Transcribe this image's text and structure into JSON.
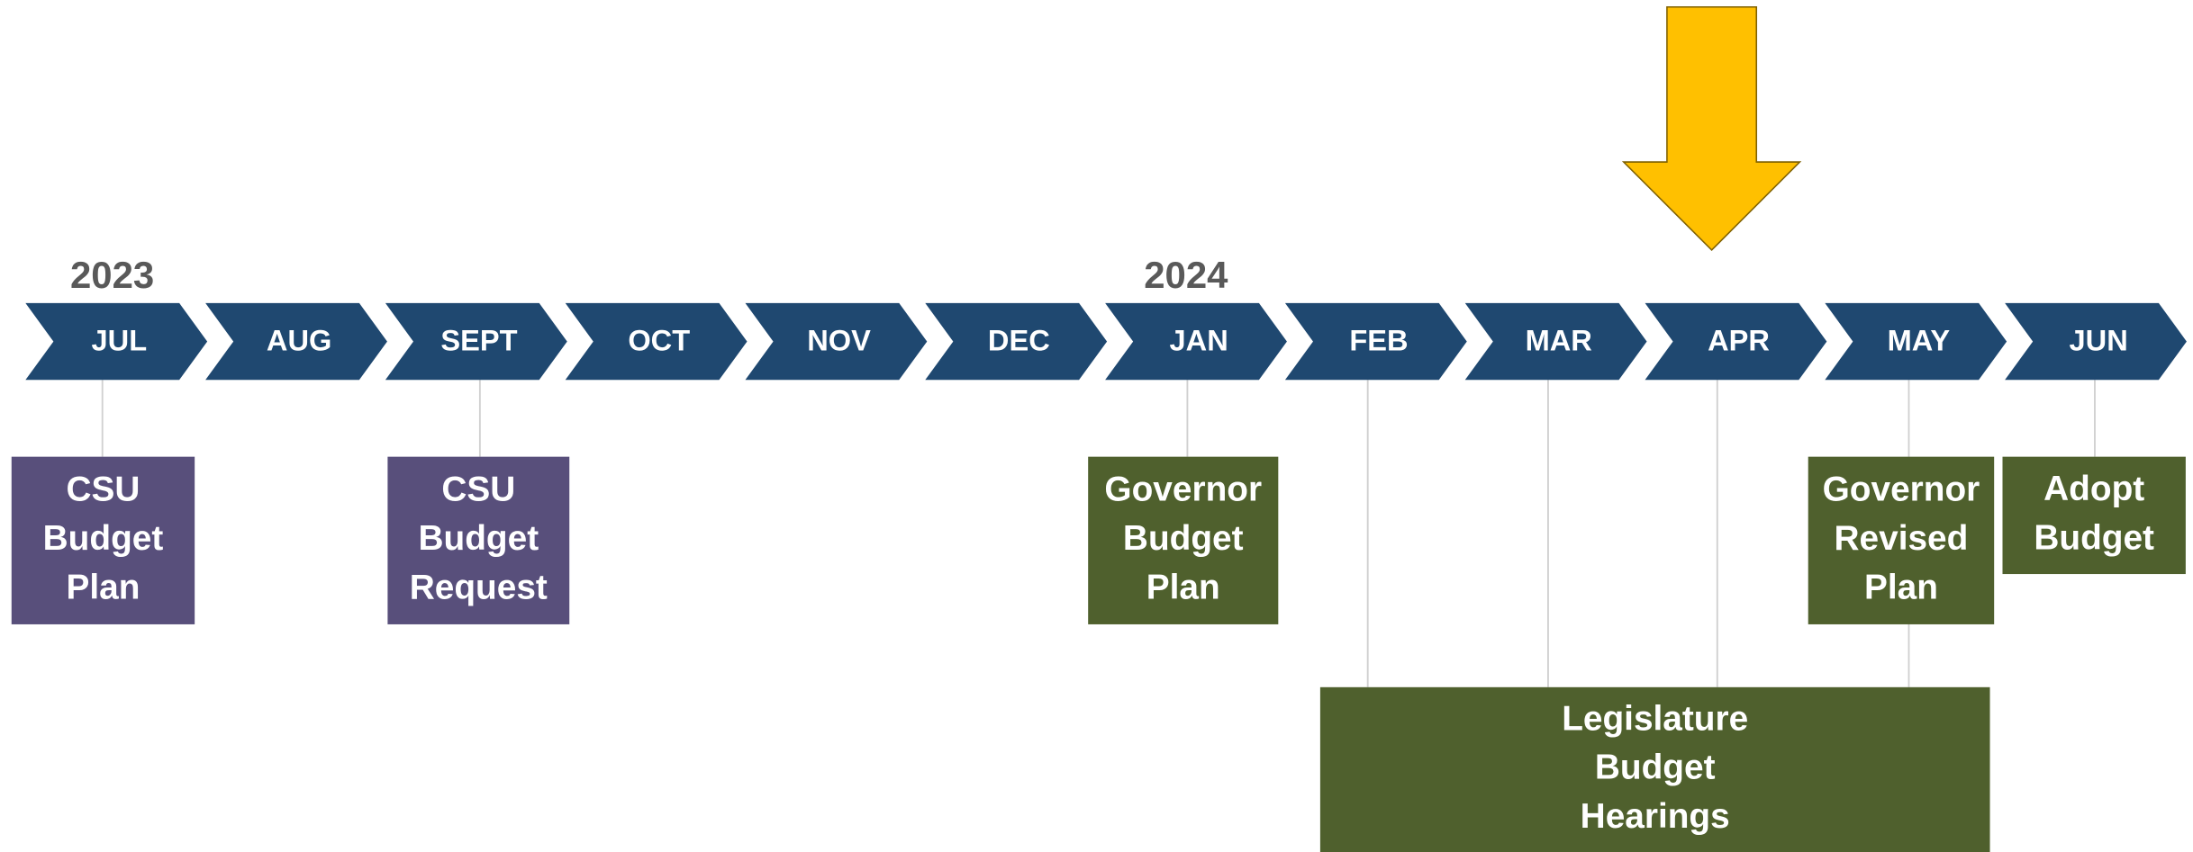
{
  "years": [
    "2023",
    "2024"
  ],
  "months": [
    "JUL",
    "AUG",
    "SEPT",
    "OCT",
    "NOV",
    "DEC",
    "JAN",
    "FEB",
    "MAR",
    "APR",
    "MAY",
    "JUN"
  ],
  "events": [
    {
      "lines": [
        "CSU",
        "Budget",
        "Plan"
      ]
    },
    {
      "lines": [
        "CSU",
        "Budget",
        "Request"
      ]
    },
    {
      "lines": [
        "Governor",
        "Budget",
        "Plan"
      ]
    },
    {
      "lines": [
        "Governor",
        "Revised",
        "Plan"
      ]
    },
    {
      "lines": [
        "Adopt",
        "Budget"
      ]
    },
    {
      "lines": [
        "Legislature",
        "Budget",
        "Hearings"
      ]
    }
  ]
}
